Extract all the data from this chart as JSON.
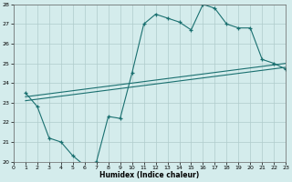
{
  "xlabel": "Humidex (Indice chaleur)",
  "bg_color": "#d4ecec",
  "grid_color": "#b0cccc",
  "line_color": "#1a7070",
  "line1_x": [
    1,
    2,
    3,
    4,
    5,
    6,
    7,
    8,
    9,
    10,
    11,
    12,
    13,
    14,
    15,
    16,
    17,
    18,
    19,
    20,
    21,
    22,
    23
  ],
  "line1_y": [
    23.5,
    22.8,
    21.2,
    21.0,
    20.3,
    19.8,
    20.0,
    22.3,
    22.2,
    24.5,
    27.0,
    27.5,
    27.3,
    27.1,
    26.7,
    28.0,
    27.8,
    27.0,
    26.8,
    26.8,
    25.2,
    25.0,
    24.7
  ],
  "line2_x": [
    1,
    23
  ],
  "line2_y": [
    23.1,
    24.8
  ],
  "line3_x": [
    1,
    23
  ],
  "line3_y": [
    23.3,
    25.0
  ],
  "xlim": [
    0,
    23
  ],
  "ylim": [
    20,
    28
  ],
  "xticks": [
    0,
    1,
    2,
    3,
    4,
    5,
    6,
    7,
    8,
    9,
    10,
    11,
    12,
    13,
    14,
    15,
    16,
    17,
    18,
    19,
    20,
    21,
    22,
    23
  ],
  "yticks": [
    20,
    21,
    22,
    23,
    24,
    25,
    26,
    27,
    28
  ]
}
